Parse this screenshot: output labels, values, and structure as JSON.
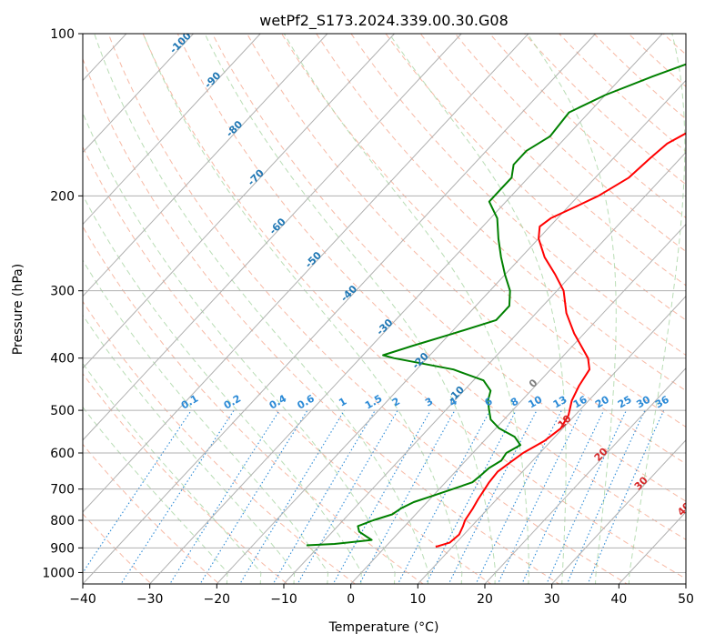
{
  "chart_data": {
    "type": "line",
    "subtype": "skew-t log-p diagram",
    "title": "wetPf2_S173.2024.339.00.30.G08",
    "xlabel": "Temperature (°C)",
    "ylabel": "Pressure (hPa)",
    "xlim": [
      -40,
      50
    ],
    "ylim": [
      1050,
      100
    ],
    "y_scale": "log",
    "x_ticks": [
      -40,
      -30,
      -20,
      -10,
      0,
      10,
      20,
      30,
      40,
      50
    ],
    "y_ticks": [
      100,
      200,
      300,
      400,
      500,
      600,
      700,
      800,
      900,
      1000
    ],
    "x_tick_labels": [
      "−40",
      "−30",
      "−20",
      "−10",
      "0",
      "10",
      "20",
      "30",
      "40",
      "50"
    ],
    "y_tick_labels": [
      "100",
      "200",
      "300",
      "400",
      "500",
      "600",
      "700",
      "800",
      "900",
      "1000"
    ],
    "grid": true,
    "background_lines": {
      "isotherms": {
        "style": "solid",
        "color": "#b0b0b0",
        "labels": [
          "-100",
          "-90",
          "-80",
          "-70",
          "-60",
          "-50",
          "-40",
          "-30",
          "-20",
          "-10",
          "0",
          "10",
          "20",
          "30",
          "40"
        ]
      },
      "dry_adiabats": {
        "style": "dashed",
        "color": "#f5a88f"
      },
      "moist_adiabats": {
        "style": "dashed",
        "color": "#a8d5a2"
      },
      "mixing_ratio": {
        "style": "dotted",
        "color": "#1f77b4",
        "labels": [
          "0.1",
          "0.2",
          "0.4",
          "0.6",
          "1",
          "1.5",
          "2",
          "3",
          "4",
          "6",
          "8",
          "10",
          "13",
          "16",
          "20",
          "25",
          "30",
          "36"
        ]
      }
    },
    "series": [
      {
        "color": "#ff0000",
        "points": [
          [
            896,
            7.5
          ],
          [
            880,
            9.0
          ],
          [
            850,
            9.3
          ],
          [
            820,
            8.7
          ],
          [
            800,
            8.2
          ],
          [
            760,
            7.7
          ],
          [
            730,
            7.2
          ],
          [
            700,
            6.8
          ],
          [
            680,
            6.5
          ],
          [
            650,
            6.3
          ],
          [
            620,
            7.0
          ],
          [
            600,
            7.5
          ],
          [
            570,
            9.0
          ],
          [
            540,
            9.7
          ],
          [
            510,
            9.0
          ],
          [
            480,
            7.5
          ],
          [
            450,
            6.5
          ],
          [
            420,
            5.8
          ],
          [
            400,
            4.0
          ],
          [
            360,
            -1.5
          ],
          [
            330,
            -5.5
          ],
          [
            300,
            -9.0
          ],
          [
            280,
            -12.5
          ],
          [
            260,
            -16.5
          ],
          [
            240,
            -20.0
          ],
          [
            228,
            -21.5
          ],
          [
            220,
            -21.0
          ],
          [
            210,
            -19.0
          ],
          [
            200,
            -17.0
          ],
          [
            185,
            -15.0
          ],
          [
            170,
            -14.5
          ],
          [
            160,
            -14.0
          ],
          [
            150,
            -12.0
          ],
          [
            135,
            -6.0
          ],
          [
            120,
            -1.5
          ],
          [
            110,
            2.0
          ],
          [
            100,
            6.0
          ]
        ]
      },
      {
        "color": "#008000",
        "points": [
          [
            890,
            -12.0
          ],
          [
            885,
            -8.0
          ],
          [
            870,
            -3.0
          ],
          [
            860,
            -4.0
          ],
          [
            840,
            -6.0
          ],
          [
            820,
            -7.0
          ],
          [
            800,
            -5.5
          ],
          [
            780,
            -3.5
          ],
          [
            760,
            -3.0
          ],
          [
            740,
            -2.0
          ],
          [
            720,
            0.0
          ],
          [
            700,
            2.0
          ],
          [
            680,
            4.0
          ],
          [
            660,
            4.3
          ],
          [
            640,
            4.5
          ],
          [
            620,
            5.3
          ],
          [
            600,
            5.0
          ],
          [
            580,
            6.0
          ],
          [
            560,
            4.0
          ],
          [
            540,
            0.5
          ],
          [
            520,
            -2.0
          ],
          [
            500,
            -3.5
          ],
          [
            480,
            -5.0
          ],
          [
            460,
            -6.0
          ],
          [
            440,
            -8.5
          ],
          [
            420,
            -14.5
          ],
          [
            400,
            -25.0
          ],
          [
            395,
            -27.0
          ],
          [
            380,
            -24.0
          ],
          [
            360,
            -19.5
          ],
          [
            340,
            -15.0
          ],
          [
            320,
            -15.0
          ],
          [
            300,
            -17.0
          ],
          [
            280,
            -20.0
          ],
          [
            260,
            -23.0
          ],
          [
            240,
            -26.0
          ],
          [
            220,
            -29.0
          ],
          [
            205,
            -32.5
          ],
          [
            195,
            -32.5
          ],
          [
            185,
            -32.5
          ],
          [
            175,
            -34.0
          ],
          [
            165,
            -34.0
          ],
          [
            155,
            -32.5
          ],
          [
            140,
            -33.0
          ],
          [
            130,
            -30.0
          ],
          [
            120,
            -25.5
          ],
          [
            110,
            -20.0
          ],
          [
            100,
            -15.0
          ]
        ]
      }
    ]
  }
}
